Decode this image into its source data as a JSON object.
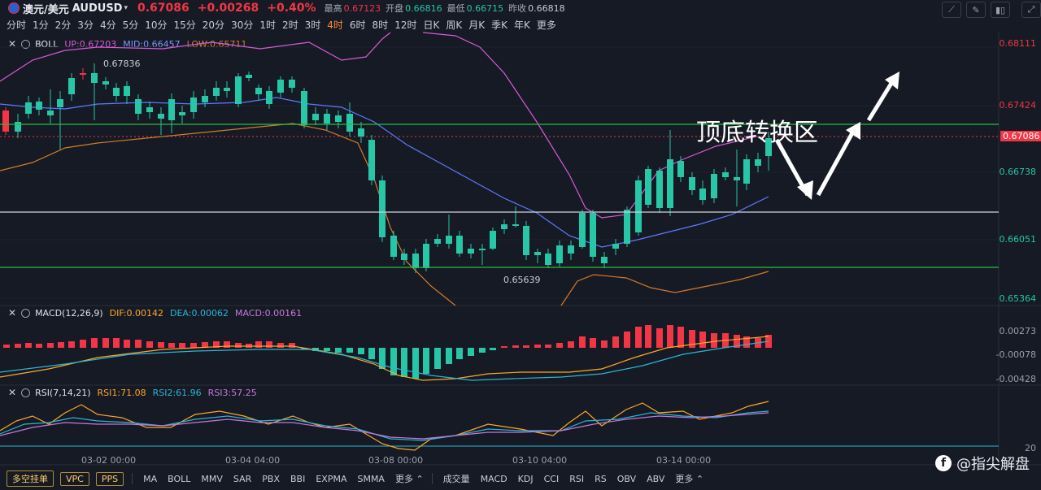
{
  "header": {
    "pair": "澳元/美元",
    "symbol": "AUDUSD",
    "price": "0.67086",
    "change": "+0.00268",
    "change_pct": "+0.40%",
    "high_label": "最高",
    "high": "0.67123",
    "open_label": "开盘",
    "open": "0.66816",
    "low_label": "最低",
    "low": "0.66715",
    "prev_label": "昨收",
    "prev": "0.66818"
  },
  "periods": [
    "分时",
    "1分",
    "2分",
    "3分",
    "4分",
    "5分",
    "10分",
    "15分",
    "20分",
    "30分",
    "1时",
    "2时",
    "3时",
    "4时",
    "6时",
    "8时",
    "12时",
    "日K",
    "周K",
    "月K",
    "季K",
    "年K",
    "更多"
  ],
  "active_period": "4时",
  "boll": {
    "name": "BOLL",
    "up": "UP:0.67203",
    "mid": "MID:0.66457",
    "low": "LOW:0.65711"
  },
  "macd": {
    "name": "MACD(12,26,9)",
    "dif": "DIF:0.00142",
    "dea": "DEA:0.00062",
    "macd": "MACD:0.00161"
  },
  "rsi": {
    "name": "RSI(7,14,21)",
    "rsi1": "RSI1:71.08",
    "rsi2": "RSI2:61.96",
    "rsi3": "RSI3:57.25"
  },
  "price_axis": [
    "0.68111",
    "0.67424",
    "0.66738",
    "0.66051",
    "0.65364"
  ],
  "current_tag": "0.67086",
  "macd_axis": [
    "0.00273",
    "-0.00078",
    "-0.00428"
  ],
  "rsi_axis": [
    "20"
  ],
  "time_axis": [
    "03-02 00:00",
    "03-04 04:00",
    "03-08 00:00",
    "03-10 04:00",
    "03-14 00:00"
  ],
  "marks": {
    "high": "0.67836",
    "low": "0.65639"
  },
  "annotation": "顶底转换区",
  "bottom_buttons": [
    "多空挂单",
    "VPC",
    "PPS"
  ],
  "main_indicators": [
    "MA",
    "BOLL",
    "MMV",
    "SAR",
    "PBX",
    "BBI",
    "EXPMA",
    "SMMA",
    "更多"
  ],
  "sub_indicators": [
    "成交量",
    "MACD",
    "KDJ",
    "CCI",
    "RSI",
    "RS",
    "OBV",
    "ABV",
    "更多"
  ],
  "brand": "@指尖解盘",
  "colors": {
    "up": "#26c6a6",
    "down": "#f23645",
    "boll_up": "#d45bd4",
    "boll_mid": "#5b7bff",
    "boll_low": "#d27a2c",
    "accent": "#ff8a3d"
  }
}
